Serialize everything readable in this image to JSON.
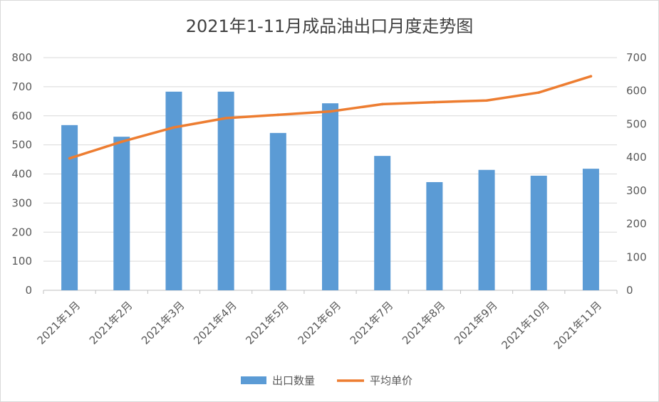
{
  "chart_data": {
    "type": "bar",
    "title": "2021年1-11月成品油出口月度走势图",
    "categories": [
      "2021年1月",
      "2021年2月",
      "2021年3月",
      "2021年4月",
      "2021年5月",
      "2021年6月",
      "2021年7月",
      "2021年8月",
      "2021年9月",
      "2021年10月",
      "2021年11月"
    ],
    "series": [
      {
        "name": "出口数量",
        "type": "bar",
        "axis": "left",
        "color": "#5b9bd5",
        "values": [
          568,
          528,
          683,
          683,
          541,
          643,
          462,
          372,
          414,
          394,
          418
        ]
      },
      {
        "name": "平均单价",
        "type": "line",
        "axis": "right",
        "color": "#ed7d31",
        "values": [
          397,
          447,
          490,
          518,
          528,
          538,
          560,
          566,
          571,
          595,
          644
        ]
      }
    ],
    "ylim": [
      0,
      800
    ],
    "yticks": [
      "0",
      "100",
      "200",
      "300",
      "400",
      "500",
      "600",
      "700",
      "800"
    ],
    "y2lim": [
      0,
      700
    ],
    "y2ticks": [
      "0",
      "100",
      "200",
      "300",
      "400",
      "500",
      "600",
      "700"
    ],
    "grid": true,
    "legend_position": "bottom"
  }
}
